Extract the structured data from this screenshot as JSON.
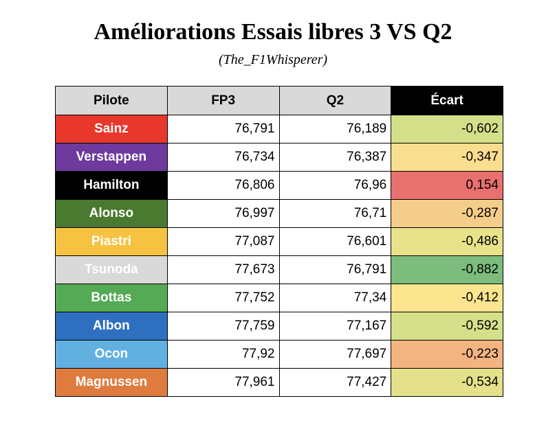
{
  "header": {
    "title": "Améliorations Essais libres 3 VS Q2",
    "subtitle": "(The_F1Whisperer)"
  },
  "table": {
    "columns": [
      "Pilote",
      "FP3",
      "Q2",
      "Écart"
    ],
    "rows": [
      {
        "cells": [
          "Sainz",
          "76,791",
          "76,189",
          "-0,602"
        ],
        "pilot_color": "#e8382b",
        "ecart_color": "#d4df8a"
      },
      {
        "cells": [
          "Verstappen",
          "76,734",
          "76,387",
          "-0,347"
        ],
        "pilot_color": "#6e3a9e",
        "ecart_color": "#f9de8f"
      },
      {
        "cells": [
          "Hamilton",
          "76,806",
          "76,96",
          "0,154"
        ],
        "pilot_color": "#000000",
        "ecart_color": "#e8706f"
      },
      {
        "cells": [
          "Alonso",
          "76,997",
          "76,71",
          "-0,287"
        ],
        "pilot_color": "#4a7a2f",
        "ecart_color": "#f5cd8a"
      },
      {
        "cells": [
          "Piastri",
          "77,087",
          "76,601",
          "-0,486"
        ],
        "pilot_color": "#f5c242",
        "ecart_color": "#e8e38a"
      },
      {
        "cells": [
          "Tsunoda",
          "77,673",
          "76,791",
          "-0,882"
        ],
        "pilot_color": "#d9d9d9",
        "ecart_color": "#7cbc7c"
      },
      {
        "cells": [
          "Bottas",
          "77,752",
          "77,34",
          "-0,412"
        ],
        "pilot_color": "#55aa55",
        "ecart_color": "#fbe58f"
      },
      {
        "cells": [
          "Albon",
          "77,759",
          "77,167",
          "-0,592"
        ],
        "pilot_color": "#2f6fc0",
        "ecart_color": "#d6df8a"
      },
      {
        "cells": [
          "Ocon",
          "77,92",
          "77,697",
          "-0,223"
        ],
        "pilot_color": "#62b0e0",
        "ecart_color": "#f3b482"
      },
      {
        "cells": [
          "Magnussen",
          "77,961",
          "77,427",
          "-0,534"
        ],
        "pilot_color": "#e07b3f",
        "ecart_color": "#e4e18a"
      }
    ]
  }
}
